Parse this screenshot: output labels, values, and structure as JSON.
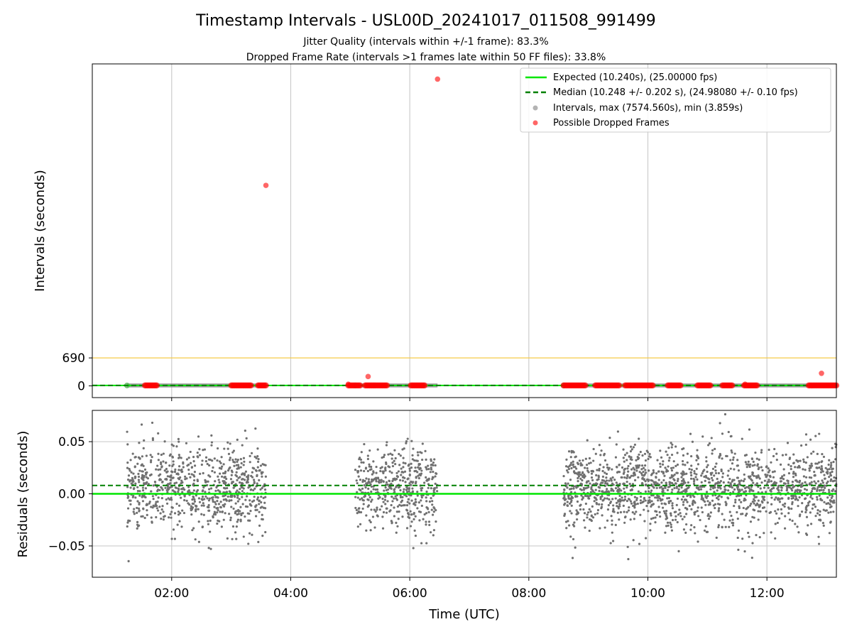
{
  "colors": {
    "expected": "#00e600",
    "median": "#008000",
    "intervals": "#808080",
    "dropped": "#ff0000",
    "threshold": "#f5c842",
    "grid": "#cccccc",
    "residual_points": "#707070"
  },
  "chart_data": [
    {
      "type": "scatter",
      "title": "Timestamp Intervals - USL00D_20241017_011508_991499",
      "subtitle_lines": [
        "Jitter Quality (intervals within +/-1 frame): 83.3%",
        "Dropped Frame Rate (intervals >1 frames late within 50 FF files): 33.8%"
      ],
      "xlabel": "",
      "ylabel": "Intervals (seconds)",
      "x_axis": "time_utc",
      "xlim": [
        "00:40",
        "13:10"
      ],
      "ylim": [
        -290,
        7950
      ],
      "yticks": [
        0,
        690
      ],
      "grid": "x",
      "threshold_line": 690,
      "legend_position": "top-right",
      "series": [
        {
          "name": "Expected (10.240s), (25.00000 fps)",
          "kind": "line",
          "y": 10.24,
          "color": "#00e600",
          "style": "solid"
        },
        {
          "name": "Median (10.248 +/- 0.202 s), (24.98080 +/- 0.10 fps)",
          "kind": "line",
          "y": 10.248,
          "color": "#008000",
          "style": "dashed"
        },
        {
          "name": "Intervals, max (7574.560s), min (3.859s)",
          "kind": "scatter",
          "color": "#808080",
          "segments": [
            [
              "01:15",
              "03:35"
            ],
            [
              "05:05",
              "06:28"
            ],
            [
              "08:35",
              "13:10"
            ]
          ]
        },
        {
          "name": "Possible Dropped Frames",
          "kind": "scatter",
          "color": "#ff0000",
          "points": [
            {
              "x": "03:35",
              "y": 4950
            },
            {
              "x": "06:28",
              "y": 7574.56
            },
            {
              "x": "05:18",
              "y": 230
            },
            {
              "x": "04:58",
              "y": 40
            },
            {
              "x": "12:55",
              "y": 310
            },
            {
              "x": "11:38",
              "y": 40
            }
          ],
          "clusters": [
            [
              "01:33",
              "01:45"
            ],
            [
              "03:00",
              "03:20"
            ],
            [
              "03:27",
              "03:35"
            ],
            [
              "04:58",
              "05:10"
            ],
            [
              "05:15",
              "05:24"
            ],
            [
              "05:25",
              "05:37"
            ],
            [
              "06:01",
              "06:15"
            ],
            [
              "08:35",
              "08:57"
            ],
            [
              "09:07",
              "09:31"
            ],
            [
              "09:37",
              "10:05"
            ],
            [
              "10:20",
              "10:33"
            ],
            [
              "10:50",
              "11:03"
            ],
            [
              "11:15",
              "11:25"
            ],
            [
              "11:37",
              "11:50"
            ],
            [
              "12:42",
              "13:10"
            ]
          ]
        }
      ]
    },
    {
      "type": "scatter",
      "xlabel": "Time (UTC)",
      "ylabel": "Residuals (seconds)",
      "xlim": [
        "00:40",
        "13:10"
      ],
      "ylim": [
        -0.08,
        0.08
      ],
      "yticks": [
        -0.05,
        0.0,
        0.05
      ],
      "ytick_labels": [
        "−0.05",
        "0.00",
        "0.05"
      ],
      "xticks": [
        "02:00",
        "04:00",
        "06:00",
        "08:00",
        "10:00",
        "12:00"
      ],
      "grid": "both",
      "expected_line": 0.0,
      "median_line": 0.008,
      "segments": [
        [
          "01:15",
          "03:35"
        ],
        [
          "05:05",
          "06:28"
        ],
        [
          "08:35",
          "13:10"
        ]
      ],
      "residual_spread": {
        "center": 0.005,
        "typical_range": [
          -0.035,
          0.045
        ],
        "extreme_range": [
          -0.075,
          0.08
        ]
      }
    }
  ]
}
